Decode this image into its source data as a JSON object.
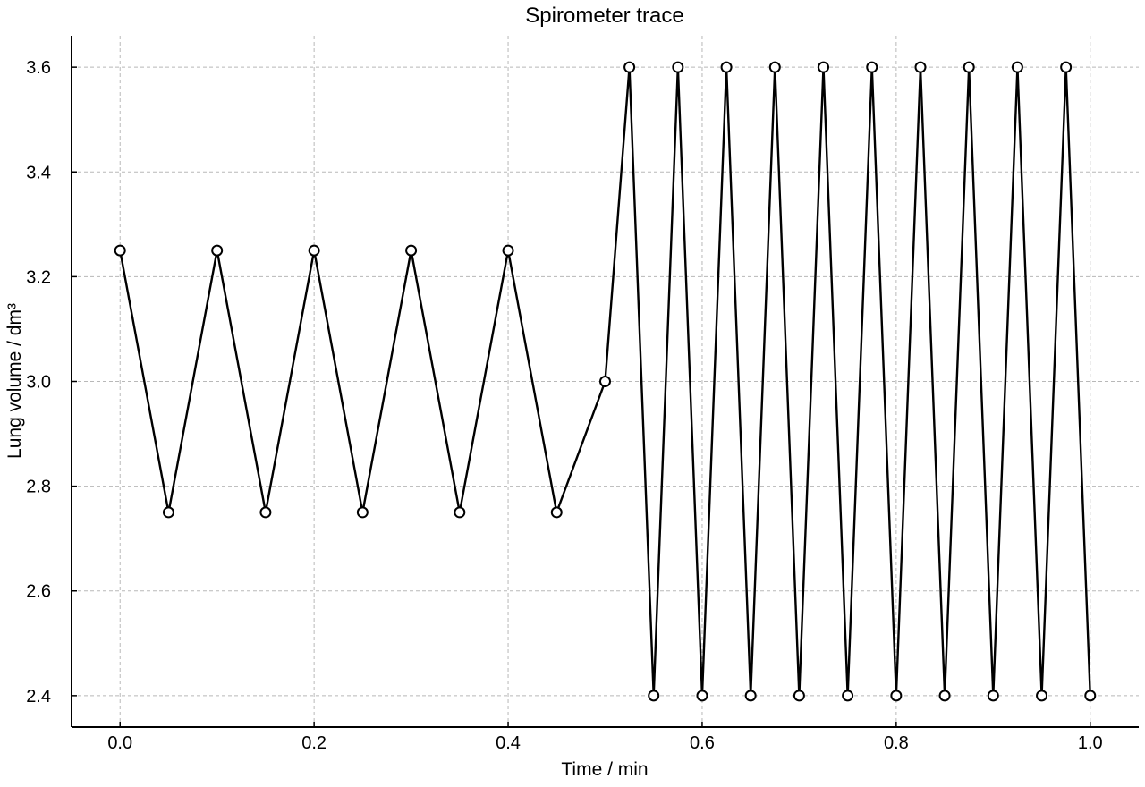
{
  "chart_data": {
    "type": "line",
    "title": "Spirometer trace",
    "xlabel": "Time / min",
    "ylabel": "Lung volume / dm³",
    "xlim": [
      -0.05,
      1.05
    ],
    "ylim": [
      2.34,
      3.66
    ],
    "xticks": [
      0.0,
      0.2,
      0.4,
      0.6,
      0.8,
      1.0
    ],
    "xtick_labels": [
      "0.0",
      "0.2",
      "0.4",
      "0.6",
      "0.8",
      "1.0"
    ],
    "yticks": [
      2.4,
      2.6,
      2.8,
      3.0,
      3.2,
      3.4,
      3.6
    ],
    "ytick_labels": [
      "2.4",
      "2.6",
      "2.8",
      "3.0",
      "3.2",
      "3.4",
      "3.6"
    ],
    "grid": true,
    "series": [
      {
        "color": "#000000",
        "marker": "open-circle",
        "x": [
          0.0,
          0.05,
          0.1,
          0.15,
          0.2,
          0.25,
          0.3,
          0.35,
          0.4,
          0.45,
          0.5,
          0.525,
          0.55,
          0.575,
          0.6,
          0.625,
          0.65,
          0.675,
          0.7,
          0.725,
          0.75,
          0.775,
          0.8,
          0.825,
          0.85,
          0.875,
          0.9,
          0.925,
          0.95,
          0.975,
          1.0
        ],
        "y": [
          3.25,
          2.75,
          3.25,
          2.75,
          3.25,
          2.75,
          3.25,
          2.75,
          3.25,
          2.75,
          3.0,
          3.6,
          2.4,
          3.6,
          2.4,
          3.6,
          2.4,
          3.6,
          2.4,
          3.6,
          2.4,
          3.6,
          2.4,
          3.6,
          2.4,
          3.6,
          2.4,
          3.6,
          2.4,
          3.6,
          2.4
        ]
      }
    ]
  }
}
